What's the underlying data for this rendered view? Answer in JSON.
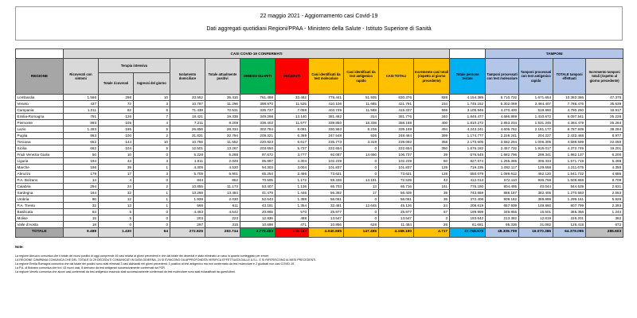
{
  "header": {
    "line1": "22 maggio 2021 - Aggiornamento casi Covid-19",
    "line2": "Dati aggregati quotidiani Regioni/PPAA - Ministero della Salute - Istituto Superiore di Sanità"
  },
  "colors": {
    "header_gray": "#d9d9d9",
    "regione_gray": "#a6a6a6",
    "green": "#00b050",
    "red": "#ff0000",
    "orange": "#ffc000",
    "cyan": "#00b0f0",
    "tamponi_blue": "#b4c6e7",
    "total_end_gray": "#bfbfbf"
  },
  "table": {
    "bands": {
      "casi": "CASI COVID-19 CONFERMATI",
      "tamponi": "TAMPONI"
    },
    "headers": {
      "regione": "REGIONE",
      "ricoverati": "Ricoverati con sintomi",
      "terapia": "Terapia intensiva",
      "totale_ricoverati": "Totale ricoverati",
      "ingressi": "Ingressi del giorno",
      "isolamento": "Isolamento domiciliare",
      "attualmente_positivi": "Totale attualmente positivi",
      "dimessi": "DIMESSI GUARITI",
      "deceduti": "DECEDUTI",
      "casi_molecolare": "Casi identificati da test molecolare",
      "casi_antigenico": "Casi identificati da test antigenico rapido",
      "casi_totali": "CASI TOTALI",
      "incremento_casi": "Incremento casi totali (rispetto al giorno precedente)",
      "persone_testate": "Totale persone testate",
      "tamponi_molecolare": "Tamponi processati con test molecolare",
      "tamponi_antigenico": "Tamponi processati con test antigenico rapido",
      "totale_tamponi": "TOTALE tamponi effettuati",
      "incremento_tamponi": "Incremento tamponi totali (rispetto al giorno precedente)"
    },
    "rows": [
      {
        "regione": "Lombardia",
        "values": [
          "1.566",
          "298",
          "10",
          "33.552",
          "35.416",
          "761.498",
          "33.462",
          "778.441",
          "51.935",
          "830.376",
          "828",
          "4.154.385",
          "8.710.732",
          "1.671.654",
          "10.382.386",
          "47.376"
        ]
      },
      {
        "regione": "Veneto",
        "values": [
          "437",
          "72",
          "3",
          "10.787",
          "11.296",
          "398.970",
          "11.525",
          "410.106",
          "11.685",
          "421.791",
          "234",
          "1.745.152",
          "5.302.069",
          "2.484.407",
          "7.786.476",
          "35.639"
        ]
      },
      {
        "regione": "Campania",
        "values": [
          "1.011",
          "82",
          "6",
          "71.438",
          "72.531",
          "335.737",
          "7.069",
          "403.749",
          "11.588",
          "415.337",
          "565",
          "3.105.946",
          "4.270.400",
          "519.860",
          "4.790.260",
          "18.917"
        ]
      },
      {
        "regione": "Emilia-Romagna",
        "values": [
          "791",
          "126",
          "7",
          "18.421",
          "19.338",
          "349.298",
          "13.140",
          "381.462",
          "314",
          "381.776",
          "340",
          "1.846.477",
          "4.686.869",
          "1.410.672",
          "6.097.541",
          "25.228"
        ]
      },
      {
        "regione": "Piemonte",
        "values": [
          "893",
          "105",
          "4",
          "7.211",
          "8.209",
          "338.402",
          "11.577",
          "339.850",
          "18.338",
          "358.188",
          "400",
          "1.810.272",
          "2.853.234",
          "1.531.245",
          "4.384.479",
          "25.284"
        ]
      },
      {
        "regione": "Lazio",
        "values": [
          "1.283",
          "195",
          "5",
          "26.856",
          "28.334",
          "302.784",
          "8.081",
          "330.963",
          "8.236",
          "339.199",
          "494",
          "4.243.241",
          "4.606.762",
          "2.181.177",
          "6.787.939",
          "38.284"
        ]
      },
      {
        "regione": "Puglia",
        "values": [
          "863",
          "100",
          "2",
          "31.831",
          "32.794",
          "209.321",
          "6.369",
          "247.548",
          "936",
          "248.484",
          "399",
          "1.174.777",
          "2.228.241",
          "204.227",
          "2.432.468",
          "8.977"
        ]
      },
      {
        "regione": "Toscana",
        "values": [
          "652",
          "144",
          "10",
          "10.756",
          "11.552",
          "220.923",
          "6.617",
          "235.773",
          "3.319",
          "239.092",
          "358",
          "2.170.605",
          "3.582.294",
          "1.006.305",
          "4.588.599",
          "22.050"
        ]
      },
      {
        "regione": "Sicilia",
        "values": [
          "662",
          "104",
          "5",
          "12.501",
          "13.267",
          "203.650",
          "5.737",
          "222.654",
          "0",
          "222.654",
          "350",
          "1.676.182",
          "2.457.732",
          "1.915.017",
          "4.372.749",
          "19.201"
        ]
      },
      {
        "regione": "Friuli Venezia Giulia",
        "values": [
          "50",
          "10",
          "0",
          "5.228",
          "5.288",
          "97.672",
          "3.777",
          "92.087",
          "14.650",
          "106.737",
          "39",
          "676.545",
          "1.682.796",
          "299.341",
          "1.982.137",
          "6.200"
        ]
      },
      {
        "regione": "Liguria",
        "values": [
          "194",
          "43",
          "3",
          "1.811",
          "2.048",
          "95.887",
          "4.304",
          "102.239",
          "0",
          "102.239",
          "60",
          "827.674",
          "1.265.385",
          "306.334",
          "1.571.719",
          "5.498"
        ]
      },
      {
        "regione": "Marche",
        "values": [
          "186",
          "39",
          "1",
          "4.305",
          "4.530",
          "94.303",
          "3.004",
          "101.837",
          "0",
          "101.837",
          "125",
          "719.235",
          "1.082.117",
          "129.558",
          "1.211.675",
          "4.350"
        ]
      },
      {
        "regione": "Abruzzo",
        "values": [
          "179",
          "17",
          "3",
          "5.705",
          "5.901",
          "65.254",
          "2.466",
          "73.621",
          "0",
          "73.621",
          "128",
          "650.079",
          "1.089.612",
          "452.120",
          "1.541.732",
          "4.886"
        ]
      },
      {
        "regione": "P.A. Bolzano",
        "values": [
          "14",
          "4",
          "0",
          "844",
          "862",
          "70.505",
          "1.172",
          "59.348",
          "13.191",
          "72.539",
          "43",
          "412.013",
          "572.110",
          "936.758",
          "1.508.868",
          "8.709"
        ]
      },
      {
        "regione": "Calabria",
        "values": [
          "294",
          "24",
          "2",
          "10.855",
          "11.173",
          "53.407",
          "1.136",
          "65.703",
          "13",
          "65.716",
          "161",
          "776.180",
          "804.495",
          "40.044",
          "844.539",
          "2.831"
        ]
      },
      {
        "regione": "Sardegna",
        "values": [
          "184",
          "32",
          "1",
          "13.268",
          "13.484",
          "41.479",
          "1.446",
          "56.392",
          "17",
          "56.409",
          "35",
          "743.869",
          "888.187",
          "382.406",
          "1.270.593",
          "2.553"
        ]
      },
      {
        "regione": "Umbria",
        "values": [
          "80",
          "12",
          "1",
          "1.938",
          "2.030",
          "52.643",
          "1.388",
          "56.061",
          "0",
          "56.061",
          "36",
          "372.406",
          "909.162",
          "389.999",
          "1.299.161",
          "5.929"
        ]
      },
      {
        "regione": "P.A. Trento",
        "values": [
          "32",
          "13",
          "1",
          "566",
          "611",
          "43.161",
          "1.354",
          "32.481",
          "12.645",
          "45.126",
          "24",
          "208.619",
          "657.939",
          "149.860",
          "807.799",
          "2.393"
        ]
      },
      {
        "regione": "Basilicata",
        "values": [
          "84",
          "5",
          "0",
          "4.453",
          "4.542",
          "20.865",
          "570",
          "25.977",
          "0",
          "25.977",
          "67",
          "199.999",
          "349.855",
          "15.501",
          "365.356",
          "1.244"
        ]
      },
      {
        "regione": "Molise",
        "values": [
          "15",
          "5",
          "0",
          "203",
          "223",
          "12.836",
          "488",
          "13.547",
          "0",
          "13.547",
          "3",
          "193.642",
          "213.382",
          "12.819",
          "226.201",
          "382"
        ]
      },
      {
        "regione": "Valle d'Aosta",
        "values": [
          "18",
          "0",
          "0",
          "297",
          "315",
          "10.698",
          "471",
          "10.856",
          "628",
          "11.484",
          "28",
          "61.681",
          "95.336",
          "31.082",
          "126.418",
          "672"
        ]
      }
    ],
    "totale": {
      "regione": "TOTALE",
      "values": [
        "9.488",
        "1.430",
        "64",
        "272.826",
        "283.744",
        "3.779.293",
        "125.153",
        "4.040.695",
        "147.495",
        "4.188.190",
        "4.717",
        "27.768.979",
        "48.308.709",
        "16.070.386",
        "64.379.095",
        "286.603"
      ]
    }
  },
  "notes": {
    "label": "Note:",
    "lines": [
      "La regione Abruzzo comunica che il totale dei nuovi positivi di oggi comprende 45 casi relativi ai giorni precedenti e che dal totale dei deceduti è stato eliminato un caso in quanto conteggiato per errore.",
      "LA REGIONE CAMPANIA COMUNICA CHE DEL TOTALE DI 29 DECEDUTI COMUNICATI IN DATA ODIERNA, 24 SI EVINCONO DA APPROFONDITA VERIFICA EFFETTUATA DALLE A.S.L. E SI RIFERISCONO AI MESI PRECEDENTI.",
      "La regione Emilia Romagna comunica che dal totale dei positivi sono stati eliminati 3 casi dichiarati nei giorni precedenti: 1 positivo al test antigenico ma non confermato da test molecolare e 2 giudicati non casi COVID-19.",
      "La P.A. di Bolzano comunica che tra i 43 nuovi casi, 8 derivano da test antigenici successivamente confermati da PCR.",
      "La regione Veneto comunica che alcuni casi confermati da test antigenico essendo stati successivamente confermati da test molecolare sono stati riclassificati tra quest'ultimi."
    ]
  }
}
